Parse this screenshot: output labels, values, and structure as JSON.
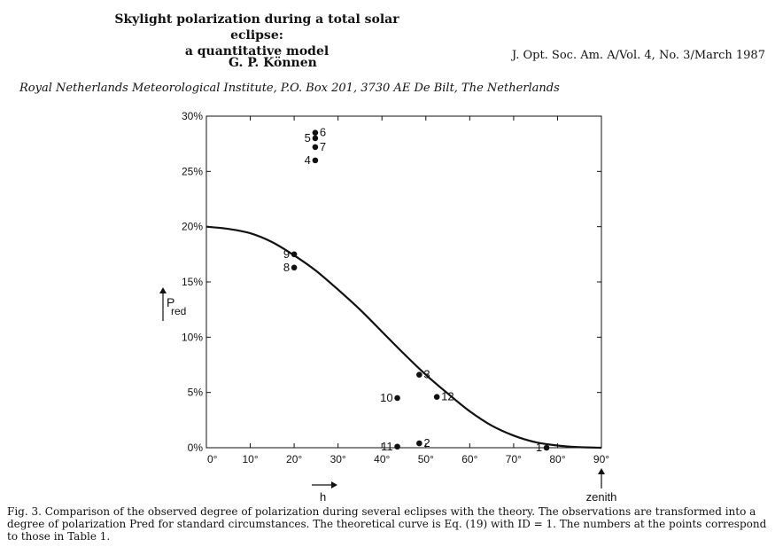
{
  "header": {
    "title_line1": "Skylight polarization during a total solar eclipse:",
    "title_line2": "a quantitative model",
    "author": "G. P. Können",
    "journal": "J. Opt. Soc. Am. A/Vol. 4, No. 3/March 1987",
    "affiliation": "Royal Netherlands Meteorological Institute, P.O. Box 201, 3730 AE De Bilt, The Netherlands"
  },
  "chart_data": {
    "type": "scatter",
    "title": "",
    "xlabel": "h",
    "ylabel": "Pred",
    "ylabel_main": "P",
    "ylabel_sub": "red",
    "xlim": [
      0,
      90
    ],
    "ylim": [
      0,
      30
    ],
    "x_ticks": [
      {
        "value": 0,
        "label": "0°"
      },
      {
        "value": 10,
        "label": "10°"
      },
      {
        "value": 20,
        "label": "20°"
      },
      {
        "value": 30,
        "label": "30°"
      },
      {
        "value": 40,
        "label": "40°"
      },
      {
        "value": 50,
        "label": "50°"
      },
      {
        "value": 60,
        "label": "60°"
      },
      {
        "value": 70,
        "label": "70°"
      },
      {
        "value": 80,
        "label": "80°"
      },
      {
        "value": 90,
        "label": "90°"
      }
    ],
    "y_ticks": [
      {
        "value": 0,
        "label": "0%"
      },
      {
        "value": 5,
        "label": "5%"
      },
      {
        "value": 10,
        "label": "10%"
      },
      {
        "value": 15,
        "label": "15%"
      },
      {
        "value": 20,
        "label": "20%"
      },
      {
        "value": 25,
        "label": "25%"
      },
      {
        "value": 30,
        "label": "30%"
      }
    ],
    "zenith_label": "zenith",
    "curve": {
      "name": "Theory (Eq. 19, I_D = 1)",
      "x": [
        0,
        5,
        10,
        15,
        20,
        25,
        30,
        35,
        40,
        45,
        50,
        55,
        60,
        65,
        70,
        75,
        80,
        85,
        90
      ],
      "y": [
        20.0,
        19.8,
        19.4,
        18.6,
        17.4,
        16.0,
        14.3,
        12.5,
        10.5,
        8.5,
        6.6,
        4.9,
        3.3,
        2.0,
        1.1,
        0.5,
        0.2,
        0.05,
        0
      ]
    },
    "points": [
      {
        "label": "1",
        "x": 77.5,
        "y": 0.0,
        "label_side": "left"
      },
      {
        "label": "2",
        "x": 48.5,
        "y": 0.4,
        "label_side": "right"
      },
      {
        "label": "3",
        "x": 48.5,
        "y": 6.6,
        "label_side": "right"
      },
      {
        "label": "4",
        "x": 24.8,
        "y": 26.0,
        "label_side": "left"
      },
      {
        "label": "5",
        "x": 24.8,
        "y": 28.0,
        "label_side": "left"
      },
      {
        "label": "6",
        "x": 24.8,
        "y": 28.5,
        "label_side": "right"
      },
      {
        "label": "7",
        "x": 24.8,
        "y": 27.2,
        "label_side": "right"
      },
      {
        "label": "8",
        "x": 20.0,
        "y": 16.3,
        "label_side": "left"
      },
      {
        "label": "9",
        "x": 20.0,
        "y": 17.5,
        "label_side": "left"
      },
      {
        "label": "10",
        "x": 43.5,
        "y": 4.5,
        "label_side": "left"
      },
      {
        "label": "11",
        "x": 43.5,
        "y": 0.1,
        "label_side": "left"
      },
      {
        "label": "12",
        "x": 52.5,
        "y": 4.6,
        "label_side": "right"
      }
    ]
  },
  "caption": {
    "figno": "Fig. 3.",
    "text": "Comparison of the observed degree of polarization during several eclipses with the theory. The observations are transformed into a degree of polarization Pred for standard circumstances. The theoretical curve is Eq. (19) with ID = 1. The numbers at the points correspond to those in Table 1."
  }
}
